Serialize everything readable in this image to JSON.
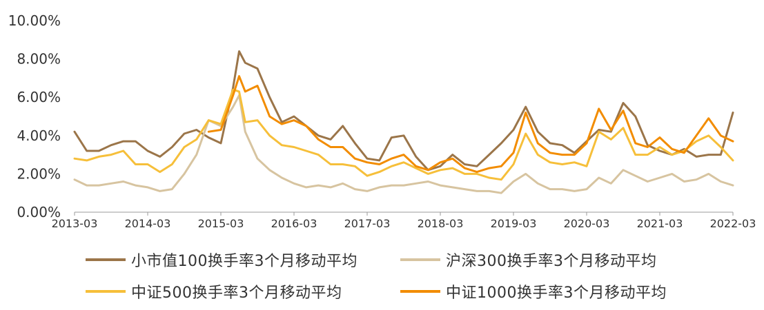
{
  "chart_data": {
    "type": "line",
    "title": "",
    "xlabel": "",
    "ylabel": "",
    "ylim": [
      0,
      10
    ],
    "yticks": [
      "0.00%",
      "2.00%",
      "4.00%",
      "6.00%",
      "8.00%",
      "10.00%"
    ],
    "xticks": [
      "2013-03",
      "2014-03",
      "2015-03",
      "2016-03",
      "2017-03",
      "2018-03",
      "2019-03",
      "2020-03",
      "2021-03",
      "2022-03"
    ],
    "x": [
      "2013-03",
      "2013-05",
      "2013-07",
      "2013-09",
      "2013-11",
      "2014-01",
      "2014-03",
      "2014-05",
      "2014-07",
      "2014-09",
      "2014-11",
      "2015-01",
      "2015-03",
      "2015-05",
      "2015-06",
      "2015-07",
      "2015-09",
      "2015-11",
      "2016-01",
      "2016-03",
      "2016-05",
      "2016-07",
      "2016-09",
      "2016-11",
      "2017-01",
      "2017-03",
      "2017-05",
      "2017-07",
      "2017-09",
      "2017-11",
      "2018-01",
      "2018-03",
      "2018-05",
      "2018-07",
      "2018-09",
      "2018-11",
      "2019-01",
      "2019-03",
      "2019-05",
      "2019-07",
      "2019-09",
      "2019-11",
      "2020-01",
      "2020-03",
      "2020-05",
      "2020-07",
      "2020-09",
      "2020-11",
      "2021-01",
      "2021-03",
      "2021-05",
      "2021-07",
      "2021-09",
      "2021-11",
      "2022-01",
      "2022-03"
    ],
    "series": [
      {
        "name": "小市值100换手率3个月移动平均",
        "color": "#9b7549",
        "values": [
          4.2,
          3.2,
          3.2,
          3.5,
          3.7,
          3.7,
          3.2,
          2.9,
          3.4,
          4.1,
          4.3,
          3.9,
          3.6,
          6.5,
          8.4,
          7.8,
          7.5,
          6.0,
          4.7,
          5.0,
          4.5,
          4.0,
          3.8,
          4.5,
          3.6,
          2.8,
          2.7,
          3.9,
          4.0,
          2.9,
          2.2,
          2.4,
          3.0,
          2.5,
          2.4,
          3.0,
          3.6,
          4.3,
          5.5,
          4.2,
          3.6,
          3.5,
          3.1,
          3.7,
          4.3,
          4.2,
          5.7,
          5.0,
          3.5,
          3.2,
          3.0,
          3.3,
          2.9,
          3.0,
          3.0,
          5.2
        ]
      },
      {
        "name": "沪深300换手率3个月移动平均",
        "color": "#d7c4a0",
        "values": [
          1.7,
          1.4,
          1.4,
          1.5,
          1.6,
          1.4,
          1.3,
          1.1,
          1.2,
          2.0,
          3.0,
          4.8,
          4.5,
          5.5,
          6.1,
          4.2,
          2.8,
          2.2,
          1.8,
          1.5,
          1.3,
          1.4,
          1.3,
          1.5,
          1.2,
          1.1,
          1.3,
          1.4,
          1.4,
          1.5,
          1.6,
          1.4,
          1.3,
          1.2,
          1.1,
          1.1,
          1.0,
          1.6,
          2.0,
          1.5,
          1.2,
          1.2,
          1.1,
          1.2,
          1.8,
          1.5,
          2.2,
          1.9,
          1.6,
          1.8,
          2.0,
          1.6,
          1.7,
          2.0,
          1.6,
          1.4
        ]
      },
      {
        "name": "中证500换手率3个月移动平均",
        "color": "#f6bf3a",
        "values": [
          2.8,
          2.7,
          2.9,
          3.0,
          3.2,
          2.5,
          2.5,
          2.1,
          2.5,
          3.4,
          3.8,
          4.8,
          4.6,
          6.4,
          6.3,
          4.7,
          4.8,
          4.0,
          3.5,
          3.4,
          3.2,
          3.0,
          2.5,
          2.5,
          2.4,
          1.9,
          2.1,
          2.4,
          2.6,
          2.3,
          2.0,
          2.2,
          2.3,
          2.0,
          2.0,
          1.8,
          1.7,
          2.5,
          4.1,
          3.0,
          2.6,
          2.5,
          2.6,
          2.4,
          4.2,
          3.8,
          4.4,
          3.0,
          3.0,
          3.4,
          3.0,
          3.2,
          3.7,
          4.0,
          3.4,
          2.7
        ]
      },
      {
        "name": "中证1000换手率3个月移动平均",
        "color": "#f28c00",
        "values": [
          null,
          null,
          null,
          null,
          null,
          null,
          null,
          null,
          null,
          null,
          null,
          4.2,
          4.3,
          6.1,
          7.1,
          6.3,
          6.6,
          5.0,
          4.6,
          4.8,
          4.5,
          3.8,
          3.4,
          3.4,
          2.8,
          2.6,
          2.5,
          2.8,
          3.0,
          2.4,
          2.2,
          2.6,
          2.8,
          2.3,
          2.1,
          2.3,
          2.4,
          3.1,
          5.2,
          3.6,
          3.1,
          3.0,
          3.0,
          3.6,
          5.4,
          4.3,
          5.3,
          3.6,
          3.4,
          3.9,
          3.3,
          3.1,
          4.0,
          4.9,
          4.0,
          3.7
        ]
      }
    ],
    "legend_position": "bottom",
    "grid": false
  }
}
